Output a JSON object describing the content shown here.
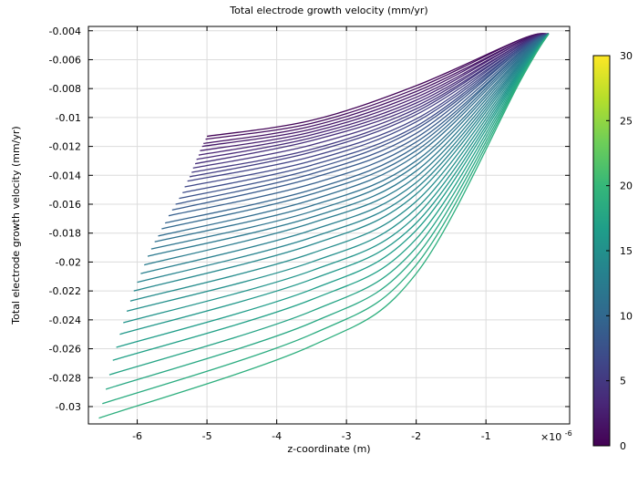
{
  "chart_data": {
    "type": "line",
    "title": "Total electrode growth velocity (mm/yr)",
    "xlabel": "z-coordinate (m)",
    "ylabel": "Total electrode growth velocity (mm/yr)",
    "x_multiplier": "×10",
    "x_multiplier_exp": "-6",
    "xlim": [
      -6.7,
      0.2
    ],
    "ylim": [
      -0.0312,
      -0.0037
    ],
    "x_ticks": [
      {
        "v": -6,
        "label": "-6"
      },
      {
        "v": -5,
        "label": "-5"
      },
      {
        "v": -4,
        "label": "-4"
      },
      {
        "v": -3,
        "label": "-3"
      },
      {
        "v": -2,
        "label": "-2"
      },
      {
        "v": -1,
        "label": "-1"
      }
    ],
    "y_ticks": [
      {
        "v": -0.004,
        "label": "-0.004"
      },
      {
        "v": -0.006,
        "label": "-0.006"
      },
      {
        "v": -0.008,
        "label": "-0.008"
      },
      {
        "v": -0.01,
        "label": "-0.01"
      },
      {
        "v": -0.012,
        "label": "-0.012"
      },
      {
        "v": -0.014,
        "label": "-0.014"
      },
      {
        "v": -0.016,
        "label": "-0.016"
      },
      {
        "v": -0.018,
        "label": "-0.018"
      },
      {
        "v": -0.02,
        "label": "-0.02"
      },
      {
        "v": -0.022,
        "label": "-0.022"
      },
      {
        "v": -0.024,
        "label": "-0.024"
      },
      {
        "v": -0.026,
        "label": "-0.026"
      },
      {
        "v": -0.028,
        "label": "-0.028"
      },
      {
        "v": -0.03,
        "label": "-0.03"
      }
    ],
    "grid": true,
    "colorbar": {
      "min": 0,
      "max": 30,
      "ticks": [
        {
          "v": 0,
          "label": "0"
        },
        {
          "v": 5,
          "label": "5"
        },
        {
          "v": 10,
          "label": "10"
        },
        {
          "v": 15,
          "label": "15"
        },
        {
          "v": 20,
          "label": "20"
        },
        {
          "v": 25,
          "label": "25"
        },
        {
          "v": 30,
          "label": "30"
        }
      ],
      "colormap": [
        "#440154",
        "#482878",
        "#3e4989",
        "#31688e",
        "#26828e",
        "#1f9e89",
        "#35b779",
        "#6ece58",
        "#b5de2b",
        "#fde725"
      ]
    },
    "series": [
      {
        "c": 0.5,
        "x": [
          -5.0,
          -3.5,
          -2.0,
          -0.5,
          -0.1
        ],
        "y": [
          -0.0113,
          -0.0102,
          -0.0078,
          -0.0046,
          -0.0042
        ]
      },
      {
        "c": 1.0,
        "x": [
          -5.02,
          -3.5,
          -2.0,
          -0.5,
          -0.1
        ],
        "y": [
          -0.0115,
          -0.0104,
          -0.008,
          -0.0046,
          -0.0042
        ]
      },
      {
        "c": 1.5,
        "x": [
          -5.05,
          -3.5,
          -2.0,
          -0.5,
          -0.1
        ],
        "y": [
          -0.0118,
          -0.0106,
          -0.0082,
          -0.0047,
          -0.0042
        ]
      },
      {
        "c": 2.0,
        "x": [
          -5.07,
          -3.5,
          -2.0,
          -0.5,
          -0.1
        ],
        "y": [
          -0.012,
          -0.0108,
          -0.0084,
          -0.0047,
          -0.0042
        ]
      },
      {
        "c": 2.5,
        "x": [
          -5.1,
          -3.5,
          -2.0,
          -0.5,
          -0.1
        ],
        "y": [
          -0.0123,
          -0.011,
          -0.0086,
          -0.0048,
          -0.0042
        ]
      },
      {
        "c": 3.0,
        "x": [
          -5.12,
          -3.5,
          -2.0,
          -0.5,
          -0.1
        ],
        "y": [
          -0.0126,
          -0.0112,
          -0.0088,
          -0.0048,
          -0.0042
        ]
      },
      {
        "c": 3.5,
        "x": [
          -5.15,
          -3.5,
          -2.0,
          -0.5,
          -0.1
        ],
        "y": [
          -0.0129,
          -0.0114,
          -0.009,
          -0.0049,
          -0.0042
        ]
      },
      {
        "c": 4.0,
        "x": [
          -5.17,
          -3.5,
          -2.0,
          -0.5,
          -0.1
        ],
        "y": [
          -0.0132,
          -0.0116,
          -0.0092,
          -0.0049,
          -0.0042
        ]
      },
      {
        "c": 4.5,
        "x": [
          -5.2,
          -3.5,
          -2.0,
          -0.5,
          -0.1
        ],
        "y": [
          -0.0135,
          -0.0119,
          -0.0094,
          -0.005,
          -0.0042
        ]
      },
      {
        "c": 5.0,
        "x": [
          -5.22,
          -3.5,
          -2.0,
          -0.5,
          -0.1
        ],
        "y": [
          -0.0138,
          -0.0122,
          -0.0096,
          -0.005,
          -0.0042
        ]
      },
      {
        "c": 5.5,
        "x": [
          -5.25,
          -3.5,
          -2.0,
          -0.5,
          -0.1
        ],
        "y": [
          -0.0141,
          -0.0124,
          -0.0098,
          -0.0051,
          -0.0042
        ]
      },
      {
        "c": 6.0,
        "x": [
          -5.28,
          -3.5,
          -2.0,
          -0.5,
          -0.1
        ],
        "y": [
          -0.0144,
          -0.0127,
          -0.0101,
          -0.0051,
          -0.0042
        ]
      },
      {
        "c": 6.5,
        "x": [
          -5.32,
          -3.5,
          -2.0,
          -0.5,
          -0.1
        ],
        "y": [
          -0.0148,
          -0.013,
          -0.0103,
          -0.0052,
          -0.0042
        ]
      },
      {
        "c": 7.0,
        "x": [
          -5.35,
          -3.5,
          -2.0,
          -0.5,
          -0.1
        ],
        "y": [
          -0.0152,
          -0.0133,
          -0.0106,
          -0.0052,
          -0.0042
        ]
      },
      {
        "c": 7.5,
        "x": [
          -5.4,
          -3.5,
          -2.0,
          -0.5,
          -0.1
        ],
        "y": [
          -0.0156,
          -0.0136,
          -0.0108,
          -0.0053,
          -0.0042
        ]
      },
      {
        "c": 8.0,
        "x": [
          -5.45,
          -3.5,
          -2.0,
          -0.5,
          -0.1
        ],
        "y": [
          -0.016,
          -0.0139,
          -0.0111,
          -0.0053,
          -0.0042
        ]
      },
      {
        "c": 8.5,
        "x": [
          -5.5,
          -3.5,
          -2.0,
          -0.5,
          -0.1
        ],
        "y": [
          -0.0164,
          -0.0142,
          -0.0114,
          -0.0054,
          -0.0042
        ]
      },
      {
        "c": 9.0,
        "x": [
          -5.55,
          -3.5,
          -2.0,
          -0.5,
          -0.1
        ],
        "y": [
          -0.0168,
          -0.0146,
          -0.0117,
          -0.0055,
          -0.0042
        ]
      },
      {
        "c": 9.5,
        "x": [
          -5.6,
          -3.5,
          -2.0,
          -0.5,
          -0.1
        ],
        "y": [
          -0.0173,
          -0.015,
          -0.012,
          -0.0055,
          -0.0042
        ]
      },
      {
        "c": 10.0,
        "x": [
          -5.65,
          -3.5,
          -2.0,
          -0.5,
          -0.1
        ],
        "y": [
          -0.0177,
          -0.0153,
          -0.0123,
          -0.0056,
          -0.0042
        ]
      },
      {
        "c": 10.5,
        "x": [
          -5.7,
          -3.5,
          -2.0,
          -0.5,
          -0.1
        ],
        "y": [
          -0.0182,
          -0.0157,
          -0.0126,
          -0.0057,
          -0.0042
        ]
      },
      {
        "c": 11.0,
        "x": [
          -5.75,
          -3.5,
          -2.0,
          -0.5,
          -0.1
        ],
        "y": [
          -0.0186,
          -0.0161,
          -0.013,
          -0.0058,
          -0.0042
        ]
      },
      {
        "c": 11.5,
        "x": [
          -5.8,
          -3.5,
          -2.0,
          -0.5,
          -0.1
        ],
        "y": [
          -0.0191,
          -0.0165,
          -0.0133,
          -0.0059,
          -0.0042
        ]
      },
      {
        "c": 12.0,
        "x": [
          -5.85,
          -3.5,
          -2.0,
          -0.5,
          -0.1
        ],
        "y": [
          -0.0196,
          -0.0169,
          -0.0137,
          -0.006,
          -0.0042
        ]
      },
      {
        "c": 12.5,
        "x": [
          -5.9,
          -3.5,
          -2.0,
          -0.5,
          -0.1
        ],
        "y": [
          -0.0202,
          -0.0173,
          -0.0141,
          -0.0061,
          -0.0042
        ]
      },
      {
        "c": 13.0,
        "x": [
          -5.95,
          -3.5,
          -2.0,
          -0.5,
          -0.1
        ],
        "y": [
          -0.0208,
          -0.0178,
          -0.0145,
          -0.0062,
          -0.0042
        ]
      },
      {
        "c": 13.5,
        "x": [
          -6.0,
          -3.5,
          -2.0,
          -0.5,
          -0.1
        ],
        "y": [
          -0.0214,
          -0.0183,
          -0.0149,
          -0.0063,
          -0.0042
        ]
      },
      {
        "c": 14.0,
        "x": [
          -6.05,
          -3.5,
          -2.0,
          -0.5,
          -0.1
        ],
        "y": [
          -0.022,
          -0.0188,
          -0.0153,
          -0.0064,
          -0.0042
        ]
      },
      {
        "c": 14.5,
        "x": [
          -6.1,
          -3.5,
          -2.0,
          -0.5,
          -0.1
        ],
        "y": [
          -0.0227,
          -0.0194,
          -0.0158,
          -0.0065,
          -0.0042
        ]
      },
      {
        "c": 15.0,
        "x": [
          -6.15,
          -3.5,
          -2.0,
          -0.5,
          -0.1
        ],
        "y": [
          -0.0234,
          -0.02,
          -0.0163,
          -0.0066,
          -0.0042
        ]
      },
      {
        "c": 15.5,
        "x": [
          -6.2,
          -3.5,
          -2.0,
          -0.5,
          -0.1
        ],
        "y": [
          -0.0242,
          -0.0206,
          -0.0168,
          -0.0067,
          -0.0042
        ]
      },
      {
        "c": 16.0,
        "x": [
          -6.25,
          -3.5,
          -2.0,
          -0.5,
          -0.1
        ],
        "y": [
          -0.025,
          -0.0212,
          -0.0173,
          -0.0068,
          -0.0042
        ]
      },
      {
        "c": 16.5,
        "x": [
          -6.3,
          -3.5,
          -2.0,
          -0.5,
          -0.1
        ],
        "y": [
          -0.0259,
          -0.0219,
          -0.0178,
          -0.0069,
          -0.0042
        ]
      },
      {
        "c": 17.0,
        "x": [
          -6.35,
          -3.5,
          -2.0,
          -0.5,
          -0.1
        ],
        "y": [
          -0.0268,
          -0.0226,
          -0.0184,
          -0.007,
          -0.0042
        ]
      },
      {
        "c": 17.5,
        "x": [
          -6.4,
          -3.5,
          -2.0,
          -0.5,
          -0.1
        ],
        "y": [
          -0.0278,
          -0.0234,
          -0.019,
          -0.0071,
          -0.0042
        ]
      },
      {
        "c": 18.0,
        "x": [
          -6.45,
          -3.5,
          -2.0,
          -0.5,
          -0.1
        ],
        "y": [
          -0.0288,
          -0.0242,
          -0.0196,
          -0.0072,
          -0.0042
        ]
      },
      {
        "c": 18.5,
        "x": [
          -6.5,
          -3.5,
          -2.0,
          -0.5,
          -0.1
        ],
        "y": [
          -0.0298,
          -0.025,
          -0.0202,
          -0.0073,
          -0.0042
        ]
      },
      {
        "c": 19.0,
        "x": [
          -6.55,
          -3.5,
          -2.0,
          -0.5,
          -0.1
        ],
        "y": [
          -0.0308,
          -0.0258,
          -0.0208,
          -0.0074,
          -0.0042
        ]
      }
    ]
  }
}
